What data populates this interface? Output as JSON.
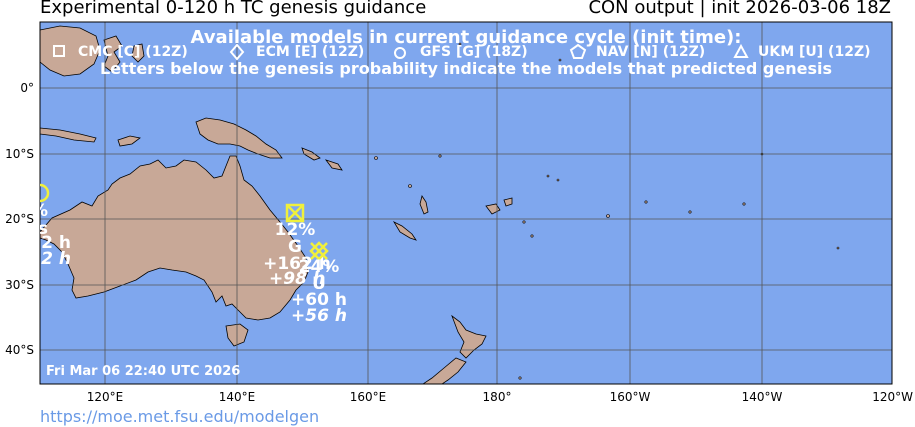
{
  "header": {
    "title_left": "Experimental 0-120 h TC genesis guidance",
    "title_right": "CON output | init 2026-03-06 18Z"
  },
  "legend": {
    "heading": "Available models in current guidance cycle (init time):",
    "models": [
      {
        "label": "CMC [C] (12Z)",
        "symbol": "square-icon"
      },
      {
        "label": "ECM [E] (12Z)",
        "symbol": "diamond-icon"
      },
      {
        "label": "GFS [G] (18Z)",
        "symbol": "circle-icon"
      },
      {
        "label": "NAV [N] (12Z)",
        "symbol": "pentagon-icon"
      },
      {
        "label": "UKM [U] (12Z)",
        "symbol": "triangle-icon"
      }
    ],
    "note": "Letters below the genesis probability indicate the models that predicted genesis"
  },
  "axes": {
    "lat_labels": [
      "0°",
      "10°S",
      "20°S",
      "30°S",
      "40°S"
    ],
    "lon_labels": [
      "120°E",
      "140°E",
      "160°E",
      "180°",
      "160°W",
      "140°W",
      "120°W"
    ]
  },
  "timestamp": "Fri Mar 06 22:40 UTC 2026",
  "footer_link": "https://moe.met.fsu.edu/modelgen",
  "colors": {
    "ocean": "#7fa7ee",
    "land": "#c8a897",
    "marker": "#f0f03c",
    "label": "#ffffff",
    "grid": "#555555"
  },
  "genesis_points": [
    {
      "id": "edge",
      "probability": "%",
      "models": "",
      "time_first": "2 h",
      "time_second": "2 h"
    },
    {
      "id": "coral-sea-north",
      "probability": "12%",
      "models": "G",
      "time_first": "+162 h",
      "time_second": "+98 h"
    },
    {
      "id": "coral-sea-south",
      "probability": "24%",
      "models": "U",
      "time_first": "+60 h",
      "time_second": "+56 h"
    }
  ]
}
